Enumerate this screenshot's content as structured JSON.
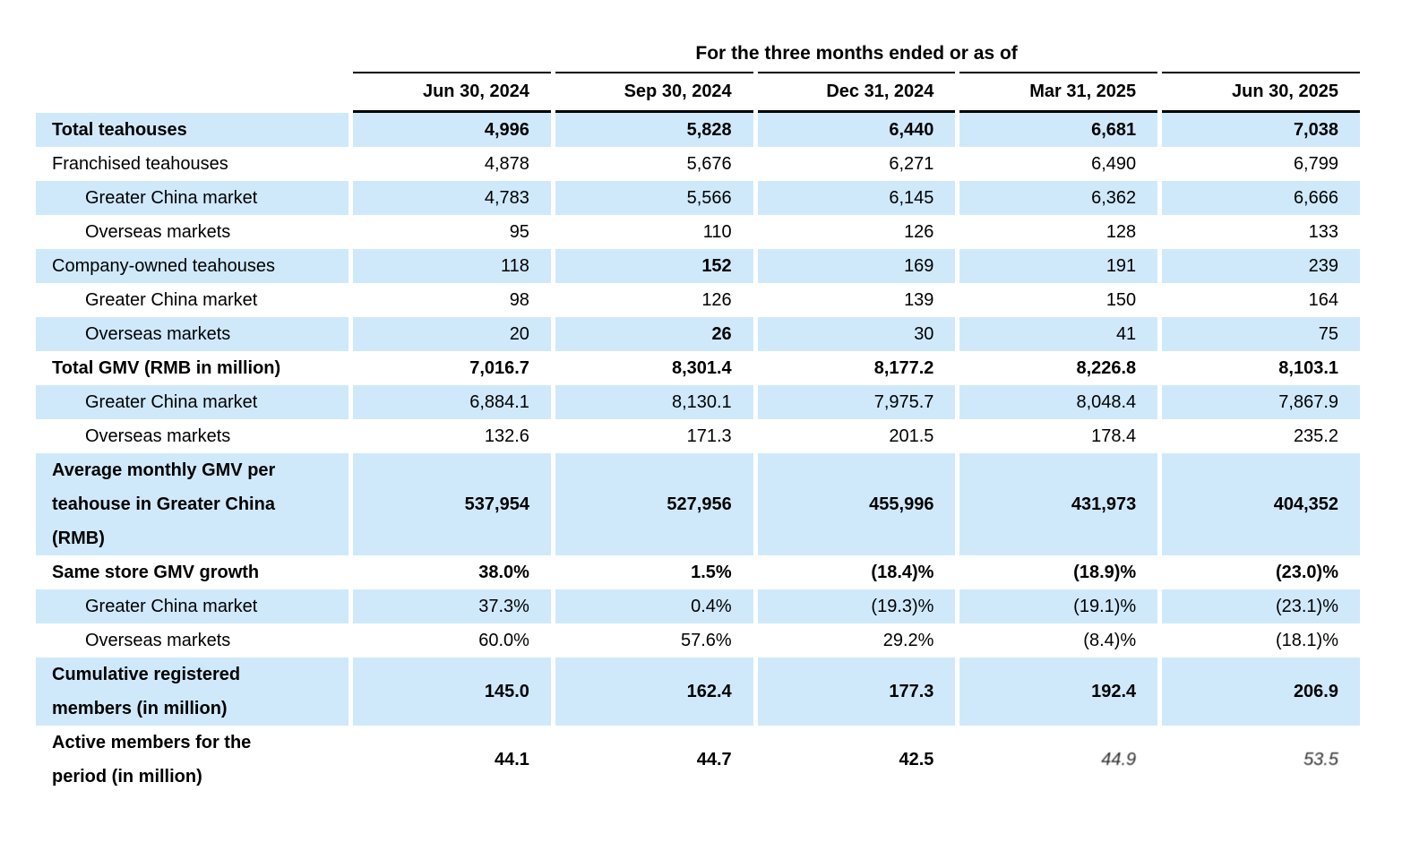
{
  "table": {
    "group_header": "For the three months ended or as of",
    "columns": [
      "Jun 30, 2024",
      "Sep 30, 2024",
      "Dec 31, 2024",
      "Mar 31, 2025",
      "Jun 30, 2025"
    ],
    "rows": [
      {
        "label": "Total teahouses",
        "indent": false,
        "label_bold": true,
        "shaded": true,
        "values": [
          "4,996",
          "5,828",
          "6,440",
          "6,681",
          "7,038"
        ],
        "bold_values": [
          true,
          true,
          true,
          true,
          true
        ]
      },
      {
        "label": "Franchised teahouses",
        "indent": false,
        "label_bold": false,
        "shaded": false,
        "values": [
          "4,878",
          "5,676",
          "6,271",
          "6,490",
          "6,799"
        ],
        "bold_values": [
          false,
          false,
          false,
          false,
          false
        ]
      },
      {
        "label": "Greater China market",
        "indent": true,
        "label_bold": false,
        "shaded": true,
        "values": [
          "4,783",
          "5,566",
          "6,145",
          "6,362",
          "6,666"
        ],
        "bold_values": [
          false,
          false,
          false,
          false,
          false
        ]
      },
      {
        "label": "Overseas markets",
        "indent": true,
        "label_bold": false,
        "shaded": false,
        "values": [
          "95",
          "110",
          "126",
          "128",
          "133"
        ],
        "bold_values": [
          false,
          false,
          false,
          false,
          false
        ]
      },
      {
        "label": "Company-owned teahouses",
        "indent": false,
        "label_bold": false,
        "shaded": true,
        "values": [
          "118",
          "152",
          "169",
          "191",
          "239"
        ],
        "bold_values": [
          false,
          true,
          false,
          false,
          false
        ]
      },
      {
        "label": "Greater China market",
        "indent": true,
        "label_bold": false,
        "shaded": false,
        "values": [
          "98",
          "126",
          "139",
          "150",
          "164"
        ],
        "bold_values": [
          false,
          false,
          false,
          false,
          false
        ]
      },
      {
        "label": "Overseas markets",
        "indent": true,
        "label_bold": false,
        "shaded": true,
        "values": [
          "20",
          "26",
          "30",
          "41",
          "75"
        ],
        "bold_values": [
          false,
          true,
          false,
          false,
          false
        ]
      },
      {
        "label": "Total GMV (RMB in million)",
        "indent": false,
        "label_bold": true,
        "shaded": false,
        "values": [
          "7,016.7",
          "8,301.4",
          "8,177.2",
          "8,226.8",
          "8,103.1"
        ],
        "bold_values": [
          true,
          true,
          true,
          true,
          true
        ]
      },
      {
        "label": "Greater China market",
        "indent": true,
        "label_bold": false,
        "shaded": true,
        "values": [
          "6,884.1",
          "8,130.1",
          "7,975.7",
          "8,048.4",
          "7,867.9"
        ],
        "bold_values": [
          false,
          false,
          false,
          false,
          false
        ]
      },
      {
        "label": "Overseas markets",
        "indent": true,
        "label_bold": false,
        "shaded": false,
        "values": [
          "132.6",
          "171.3",
          "201.5",
          "178.4",
          "235.2"
        ],
        "bold_values": [
          false,
          false,
          false,
          false,
          false
        ]
      },
      {
        "label": "Average monthly GMV per teahouse in Greater China (RMB)",
        "indent": false,
        "label_bold": true,
        "shaded": true,
        "values": [
          "537,954",
          "527,956",
          "455,996",
          "431,973",
          "404,352"
        ],
        "bold_values": [
          true,
          true,
          true,
          true,
          true
        ]
      },
      {
        "label": "Same store GMV growth",
        "indent": false,
        "label_bold": true,
        "shaded": false,
        "values": [
          "38.0%",
          "1.5%",
          "(18.4)%",
          "(18.9)%",
          "(23.0)%"
        ],
        "bold_values": [
          true,
          true,
          true,
          true,
          true
        ]
      },
      {
        "label": "Greater China market",
        "indent": true,
        "label_bold": false,
        "shaded": true,
        "values": [
          "37.3%",
          "0.4%",
          "(19.3)%",
          "(19.1)%",
          "(23.1)%"
        ],
        "bold_values": [
          false,
          false,
          false,
          false,
          false
        ]
      },
      {
        "label": "Overseas markets",
        "indent": true,
        "label_bold": false,
        "shaded": false,
        "values": [
          "60.0%",
          "57.6%",
          "29.2%",
          "(8.4)%",
          "(18.1)%"
        ],
        "bold_values": [
          false,
          false,
          false,
          false,
          false
        ]
      },
      {
        "label": "Cumulative registered members (in million)",
        "indent": false,
        "label_bold": true,
        "shaded": true,
        "values": [
          "145.0",
          "162.4",
          "177.3",
          "192.4",
          "206.9"
        ],
        "bold_values": [
          true,
          true,
          true,
          true,
          true
        ]
      },
      {
        "label": "Active members for the period (in million)",
        "indent": false,
        "label_bold": true,
        "shaded": false,
        "values": [
          "44.1",
          "44.7",
          "42.5",
          "44.9",
          "53.5"
        ],
        "bold_values": [
          true,
          true,
          true,
          false,
          false
        ],
        "distorted_values": [
          false,
          false,
          false,
          true,
          true
        ]
      }
    ],
    "colors": {
      "row_shade": "#cfe9fb",
      "rule": "#000000",
      "text": "#000000"
    }
  }
}
